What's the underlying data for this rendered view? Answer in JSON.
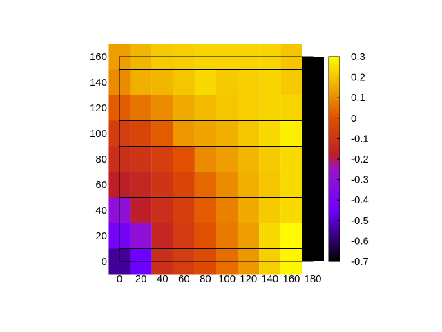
{
  "chart_data": {
    "type": "heatmap",
    "title": "",
    "xlabel": "",
    "ylabel": "",
    "x": [
      0,
      20,
      40,
      60,
      80,
      100,
      120,
      140,
      160
    ],
    "y": [
      0,
      20,
      40,
      60,
      80,
      100,
      120,
      140,
      160
    ],
    "xlim": [
      0,
      180
    ],
    "ylim": [
      0,
      160
    ],
    "x_ticks": [
      "0",
      "20",
      "40",
      "60",
      "80",
      "100",
      "120",
      "140",
      "160",
      "180"
    ],
    "y_ticks": [
      "0",
      "20",
      "40",
      "60",
      "80",
      "100",
      "120",
      "140",
      "160"
    ],
    "values": [
      [
        -0.55,
        -0.45,
        -0.12,
        -0.07,
        -0.02,
        0.05,
        0.12,
        0.22,
        0.29
      ],
      [
        -0.42,
        -0.3,
        -0.15,
        -0.08,
        0.0,
        0.07,
        0.13,
        0.24,
        0.3
      ],
      [
        -0.3,
        -0.18,
        -0.12,
        -0.06,
        0.02,
        0.08,
        0.15,
        0.21,
        0.24
      ],
      [
        -0.18,
        -0.15,
        -0.1,
        -0.04,
        0.04,
        0.1,
        0.16,
        0.2,
        0.24
      ],
      [
        -0.12,
        -0.1,
        -0.06,
        0.0,
        0.1,
        0.13,
        0.17,
        0.21,
        0.24
      ],
      [
        -0.07,
        -0.04,
        0.02,
        0.12,
        0.14,
        0.16,
        0.2,
        0.24,
        0.28
      ],
      [
        0.02,
        0.06,
        0.1,
        0.15,
        0.18,
        0.2,
        0.22,
        0.23,
        0.23
      ],
      [
        0.1,
        0.16,
        0.17,
        0.2,
        0.24,
        0.21,
        0.22,
        0.23,
        0.21
      ],
      [
        0.13,
        0.17,
        0.21,
        0.22,
        0.23,
        0.23,
        0.23,
        0.23,
        0.2
      ]
    ],
    "colorbar": {
      "range": [
        -0.7,
        0.3
      ],
      "ticks": [
        "0.3",
        "0.2",
        "0.1",
        "0",
        "-0.1",
        "-0.2",
        "-0.3",
        "-0.4",
        "-0.5",
        "-0.6",
        "-0.7"
      ]
    },
    "colormap": "black-purple-red-orange-yellow",
    "grid": false
  }
}
